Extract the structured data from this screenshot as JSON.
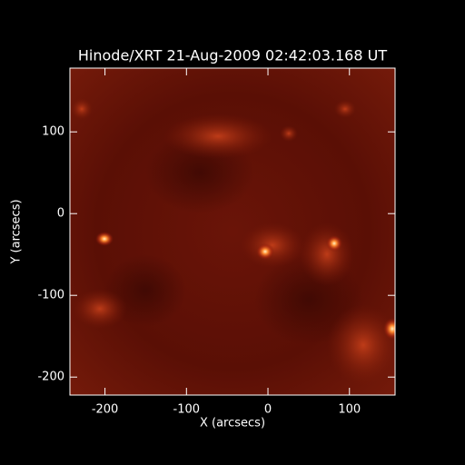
{
  "chart_data": {
    "type": "image",
    "title": "Hinode/XRT 21-Aug-2009 02:42:03.168 UT",
    "x_label": "X (arcsecs)",
    "y_label": "Y (arcsecs)",
    "xlim": [
      -243,
      156
    ],
    "ylim": [
      -222,
      178
    ],
    "xticks": [
      -200,
      -100,
      0,
      100
    ],
    "yticks": [
      -200,
      -100,
      0,
      100
    ]
  }
}
